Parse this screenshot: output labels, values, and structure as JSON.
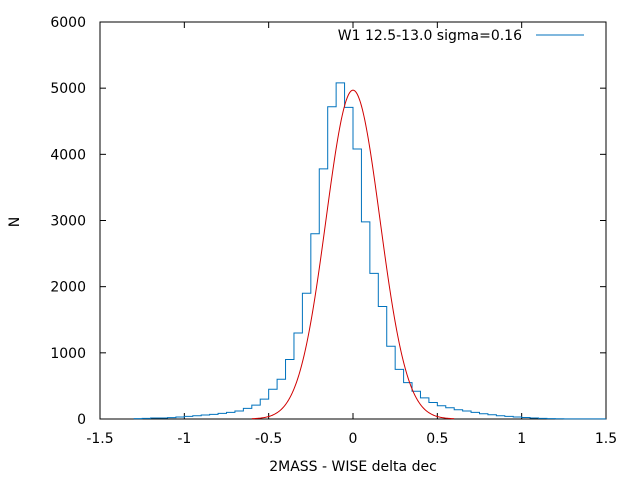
{
  "chart_data": {
    "type": "histogram",
    "xlabel": "2MASS - WISE delta dec",
    "ylabel": "N",
    "xlim": [
      -1.5,
      1.5
    ],
    "ylim": [
      0,
      6000
    ],
    "xticks": [
      -1.5,
      -1,
      -0.5,
      0,
      0.5,
      1,
      1.5
    ],
    "yticks": [
      0,
      1000,
      2000,
      3000,
      4000,
      5000,
      6000
    ],
    "xtick_labels": [
      "-1.5",
      "-1",
      "-0.5",
      "0",
      "0.5",
      "1",
      "1.5"
    ],
    "ytick_labels": [
      "0",
      "1000",
      "2000",
      "3000",
      "4000",
      "5000",
      "6000"
    ],
    "legend_placement": "top-right",
    "colors": {
      "histogram": "#0072bd",
      "fit": "#d00000"
    },
    "series": [
      {
        "name": "W1 12.5-13.0  sigma=0.16",
        "type": "step",
        "bin_width": 0.05,
        "bin_edges_start": -1.3,
        "values": [
          5,
          10,
          15,
          15,
          20,
          30,
          40,
          50,
          60,
          70,
          85,
          100,
          120,
          160,
          210,
          300,
          450,
          600,
          900,
          1300,
          1900,
          2800,
          3780,
          4720,
          5080,
          4710,
          4080,
          2980,
          2200,
          1700,
          1100,
          750,
          550,
          420,
          320,
          250,
          200,
          170,
          140,
          120,
          100,
          80,
          65,
          50,
          40,
          30,
          22,
          15,
          10,
          5,
          3,
          2,
          1,
          1,
          1,
          1
        ]
      },
      {
        "name": "",
        "type": "gaussian-fit",
        "amplitude": 4970,
        "mean": 0.0,
        "sigma": 0.16
      }
    ]
  }
}
